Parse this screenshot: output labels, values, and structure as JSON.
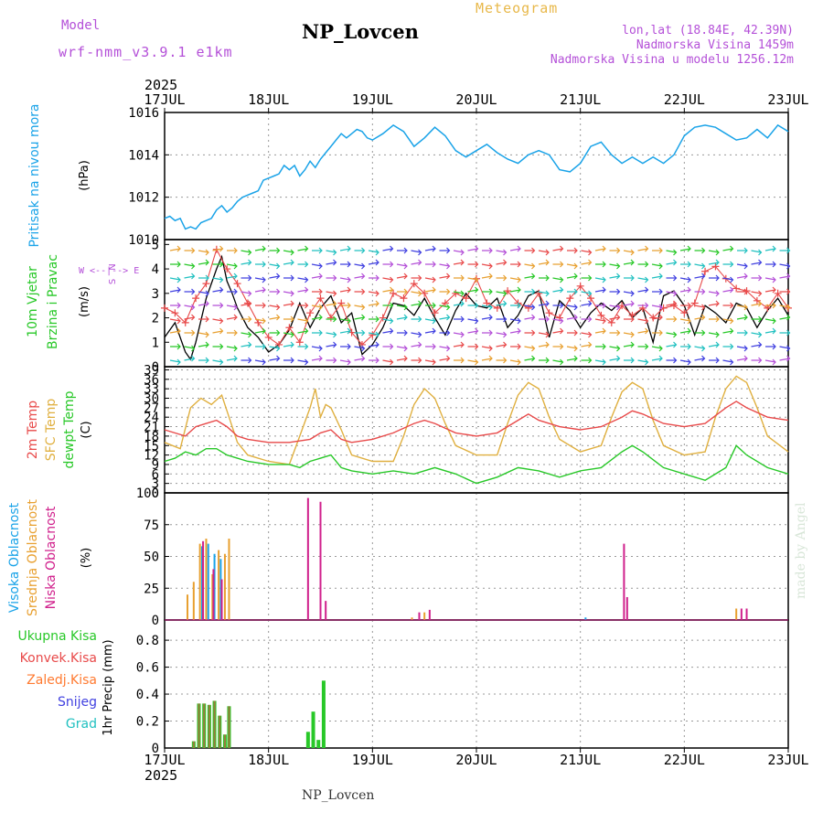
{
  "header": {
    "title": "NP_Lovcen",
    "meteogram_label": "Meteogram",
    "model_label": "Model",
    "model_name": "wrf-nmm_v3.9.1 e1km",
    "lonlat": "lon,lat (18.84E, 42.39N)",
    "elevation": "Nadmorska Visina 1459m",
    "model_elevation": "Nadmorska Visina u modelu 1256.12m"
  },
  "footer": {
    "station": "NP_Lovcen",
    "credit": "made by Angel"
  },
  "colors": {
    "pressure": "#1aa3e8",
    "wind_black": "#000000",
    "gust": "#e84a4a",
    "t2m": "#e84a4a",
    "tsfc": "#e0b040",
    "dewpt": "#28c828",
    "cloud_high": "#1aa3e8",
    "cloud_mid": "#e8a030",
    "cloud_low": "#d0208c",
    "precip_total": "#28c828",
    "precip_conv": "#e84a4a",
    "precip_frz": "#ff7a30",
    "snow": "#4040e0",
    "graupel": "#20c0c0",
    "purple_text": "#b450d8"
  },
  "chart_data": [
    {
      "type": "line",
      "panel": "pressure",
      "ylabel_main": "Pritisak na nivou mora",
      "ylabel_unit": "(hPa)",
      "year": "2025",
      "x_ticks": [
        "17JUL",
        "18JUL",
        "19JUL",
        "20JUL",
        "21JUL",
        "22JUL",
        "23JUL"
      ],
      "x_range_days": [
        0,
        6
      ],
      "ylim": [
        1010,
        1016
      ],
      "y_ticks": [
        1010,
        1012,
        1014,
        1016
      ],
      "grid": true,
      "series": [
        {
          "x": [
            0,
            0.05,
            0.1,
            0.15,
            0.2,
            0.25,
            0.3,
            0.35,
            0.4,
            0.45,
            0.5,
            0.55,
            0.6,
            0.65,
            0.7,
            0.75,
            0.8,
            0.85,
            0.9,
            0.95,
            1.0,
            1.05,
            1.1,
            1.15,
            1.2,
            1.25,
            1.3,
            1.35,
            1.4,
            1.45,
            1.5,
            1.55,
            1.6,
            1.65,
            1.7,
            1.75,
            1.8,
            1.85,
            1.9,
            1.95,
            2.0,
            2.1,
            2.2,
            2.3,
            2.4,
            2.5,
            2.6,
            2.7,
            2.8,
            2.9,
            3.0,
            3.1,
            3.2,
            3.3,
            3.4,
            3.5,
            3.6,
            3.7,
            3.8,
            3.9,
            4.0,
            4.1,
            4.2,
            4.3,
            4.4,
            4.5,
            4.6,
            4.7,
            4.8,
            4.9,
            5.0,
            5.1,
            5.2,
            5.3,
            5.4,
            5.5,
            5.6,
            5.7,
            5.8,
            5.9,
            6.0
          ],
          "values": [
            1011.0,
            1011.1,
            1010.9,
            1011.0,
            1010.5,
            1010.6,
            1010.5,
            1010.8,
            1010.9,
            1011.0,
            1011.4,
            1011.6,
            1011.3,
            1011.5,
            1011.8,
            1012.0,
            1012.1,
            1012.2,
            1012.3,
            1012.8,
            1012.9,
            1013.0,
            1013.1,
            1013.5,
            1013.3,
            1013.5,
            1013.0,
            1013.3,
            1013.7,
            1013.4,
            1013.8,
            1014.1,
            1014.4,
            1014.7,
            1015.0,
            1014.8,
            1015.0,
            1015.2,
            1015.1,
            1014.8,
            1014.7,
            1015.0,
            1015.4,
            1015.1,
            1014.4,
            1014.8,
            1015.3,
            1014.9,
            1014.2,
            1013.9,
            1014.2,
            1014.5,
            1014.1,
            1013.8,
            1013.6,
            1014.0,
            1014.2,
            1014.0,
            1013.3,
            1013.2,
            1013.6,
            1014.4,
            1014.6,
            1014.0,
            1013.6,
            1013.9,
            1013.6,
            1013.9,
            1013.6,
            1014.0,
            1014.9,
            1015.3,
            1015.4,
            1015.3,
            1015.0,
            1014.7,
            1014.8,
            1015.2,
            1014.8,
            1015.4,
            1015.1
          ]
        }
      ]
    },
    {
      "type": "line",
      "panel": "wind",
      "ylabel_main_1": "10m Vjetar",
      "ylabel_main_2": "Brzina i Pravac",
      "ylabel_unit": "(m/s)",
      "compass_1": "N",
      "compass_2": "W <--|--> E",
      "compass_3": "S",
      "ylim": [
        0,
        5.2
      ],
      "y_ticks": [
        0,
        1,
        2,
        3,
        4,
        5
      ],
      "series": [
        {
          "name": "",
          "x": [
            0,
            0.1,
            0.2,
            0.25,
            0.3,
            0.4,
            0.5,
            0.55,
            0.6,
            0.65,
            0.7,
            0.8,
            0.9,
            1.0,
            1.1,
            1.2,
            1.3,
            1.4,
            1.5,
            1.6,
            1.7,
            1.8,
            1.9,
            2.0,
            2.1,
            2.2,
            2.3,
            2.4,
            2.5,
            2.6,
            2.7,
            2.8,
            2.9,
            3.0,
            3.1,
            3.2,
            3.3,
            3.4,
            3.5,
            3.6,
            3.7,
            3.8,
            3.9,
            4.0,
            4.1,
            4.2,
            4.3,
            4.4,
            4.5,
            4.6,
            4.7,
            4.8,
            4.9,
            5.0,
            5.1,
            5.2,
            5.3,
            5.4,
            5.5,
            5.6,
            5.7,
            5.8,
            5.9,
            6.0
          ],
          "values": [
            1.2,
            1.8,
            0.6,
            0.3,
            1.0,
            2.8,
            4.0,
            4.5,
            3.5,
            3.0,
            2.4,
            1.6,
            1.2,
            0.6,
            0.9,
            1.5,
            2.6,
            1.6,
            2.4,
            2.9,
            1.8,
            2.2,
            0.5,
            0.9,
            1.6,
            2.6,
            2.5,
            2.1,
            2.8,
            2.0,
            1.3,
            2.3,
            3.0,
            2.5,
            2.4,
            2.8,
            1.6,
            2.1,
            2.9,
            3.1,
            1.2,
            2.7,
            2.3,
            1.6,
            2.2,
            2.6,
            2.3,
            2.7,
            2.0,
            2.4,
            1.0,
            2.9,
            3.1,
            2.5,
            1.3,
            2.5,
            2.2,
            1.8,
            2.6,
            2.4,
            1.6,
            2.3,
            2.8,
            2.1
          ]
        },
        {
          "name": "",
          "x": [
            0,
            0.1,
            0.2,
            0.3,
            0.4,
            0.5,
            0.6,
            0.7,
            0.8,
            0.9,
            1.0,
            1.1,
            1.2,
            1.3,
            1.4,
            1.5,
            1.6,
            1.7,
            1.8,
            1.9,
            2.0,
            2.1,
            2.2,
            2.3,
            2.4,
            2.5,
            2.6,
            2.7,
            2.8,
            2.9,
            3.0,
            3.1,
            3.2,
            3.3,
            3.4,
            3.5,
            3.6,
            3.7,
            3.8,
            3.9,
            4.0,
            4.1,
            4.2,
            4.3,
            4.4,
            4.5,
            4.6,
            4.7,
            4.8,
            4.9,
            5.0,
            5.1,
            5.2,
            5.3,
            5.4,
            5.5,
            5.6,
            5.7,
            5.8,
            5.9,
            6.0
          ],
          "values": [
            2.4,
            2.2,
            1.8,
            2.8,
            3.4,
            4.8,
            4.0,
            3.4,
            2.6,
            1.8,
            1.2,
            0.9,
            1.6,
            1.0,
            2.2,
            2.8,
            2.0,
            2.6,
            1.4,
            0.9,
            1.3,
            2.0,
            3.0,
            2.8,
            3.4,
            3.0,
            2.2,
            2.6,
            3.0,
            2.8,
            3.6,
            2.6,
            2.4,
            3.1,
            2.6,
            2.4,
            3.0,
            2.2,
            2.0,
            2.8,
            3.3,
            2.8,
            2.1,
            1.8,
            2.5,
            2.1,
            2.4,
            2.0,
            2.4,
            2.5,
            2.2,
            2.6,
            3.9,
            4.1,
            3.6,
            3.2,
            3.1,
            2.7,
            2.4,
            3.0,
            2.4
          ]
        }
      ]
    },
    {
      "type": "line",
      "panel": "temperature",
      "ylabel_main_1": "2m Temp",
      "ylabel_main_2": "SFC Temp",
      "ylabel_main_3": "dewpt Temp",
      "ylabel_unit": "(C)",
      "ylim": [
        0,
        40
      ],
      "y_ticks": [
        0,
        3,
        6,
        9,
        12,
        15,
        18,
        21,
        24,
        27,
        30,
        33,
        36,
        39
      ],
      "series": [
        {
          "name": "2m Temp",
          "x": [
            0,
            0.2,
            0.3,
            0.4,
            0.5,
            0.6,
            0.7,
            0.8,
            1.0,
            1.2,
            1.4,
            1.5,
            1.6,
            1.7,
            1.8,
            2.0,
            2.2,
            2.4,
            2.5,
            2.6,
            2.8,
            3.0,
            3.2,
            3.4,
            3.5,
            3.6,
            3.8,
            4.0,
            4.2,
            4.4,
            4.5,
            4.6,
            4.8,
            5.0,
            5.2,
            5.4,
            5.5,
            5.6,
            5.8,
            6.0
          ],
          "values": [
            20,
            18,
            21,
            22,
            23,
            21,
            18,
            17,
            16,
            16,
            17,
            19,
            20,
            17,
            16,
            17,
            19,
            22,
            23,
            22,
            19,
            18,
            19,
            23,
            25,
            23,
            21,
            20,
            21,
            24,
            26,
            25,
            22,
            21,
            22,
            27,
            29,
            27,
            24,
            23
          ]
        },
        {
          "name": "SFC Temp",
          "x": [
            0,
            0.15,
            0.25,
            0.35,
            0.45,
            0.55,
            0.6,
            0.7,
            0.8,
            1.0,
            1.2,
            1.3,
            1.4,
            1.45,
            1.5,
            1.55,
            1.6,
            1.7,
            1.8,
            2.0,
            2.2,
            2.3,
            2.4,
            2.5,
            2.6,
            2.7,
            2.8,
            3.0,
            3.2,
            3.3,
            3.4,
            3.5,
            3.6,
            3.7,
            3.8,
            4.0,
            4.2,
            4.3,
            4.4,
            4.5,
            4.6,
            4.7,
            4.8,
            5.0,
            5.2,
            5.3,
            5.4,
            5.5,
            5.6,
            5.7,
            5.8,
            6.0
          ],
          "values": [
            16,
            14,
            27,
            30,
            28,
            31,
            26,
            16,
            12,
            10,
            9,
            18,
            27,
            33,
            24,
            28,
            27,
            20,
            12,
            10,
            10,
            18,
            28,
            33,
            30,
            22,
            15,
            12,
            12,
            22,
            31,
            35,
            33,
            24,
            17,
            13,
            15,
            24,
            32,
            35,
            33,
            23,
            15,
            12,
            13,
            24,
            33,
            37,
            35,
            27,
            18,
            13
          ]
        },
        {
          "name": "dewpt Temp",
          "x": [
            0,
            0.1,
            0.2,
            0.3,
            0.4,
            0.5,
            0.6,
            0.7,
            0.8,
            1.0,
            1.2,
            1.3,
            1.4,
            1.5,
            1.6,
            1.7,
            1.8,
            2.0,
            2.2,
            2.4,
            2.6,
            2.8,
            3.0,
            3.2,
            3.4,
            3.6,
            3.8,
            4.0,
            4.2,
            4.4,
            4.5,
            4.6,
            4.8,
            5.0,
            5.2,
            5.4,
            5.5,
            5.6,
            5.8,
            6.0
          ],
          "values": [
            10,
            11,
            13,
            12,
            14,
            14,
            12,
            11,
            10,
            9,
            9,
            8,
            10,
            11,
            12,
            8,
            7,
            6,
            7,
            6,
            8,
            6,
            3,
            5,
            8,
            7,
            5,
            7,
            8,
            13,
            15,
            13,
            8,
            6,
            4,
            8,
            15,
            12,
            8,
            6
          ]
        }
      ]
    },
    {
      "type": "bar",
      "panel": "clouds",
      "ylabel_main_1": "Visoka Oblacnost",
      "ylabel_main_2": "Srednja Oblacnost",
      "ylabel_main_3": "Niska Oblacnost",
      "ylabel_unit": "(%)",
      "ylim": [
        0,
        100
      ],
      "y_ticks": [
        0,
        25,
        50,
        75,
        100
      ],
      "series": [
        {
          "name": "Visoka Oblacnost",
          "x": [
            0.36,
            0.42,
            0.48,
            0.54,
            4.05
          ],
          "values": [
            58,
            60,
            52,
            48,
            2
          ]
        },
        {
          "name": "Srednja Oblacnost",
          "x": [
            0.22,
            0.28,
            0.34,
            0.4,
            0.46,
            0.52,
            0.58,
            0.62,
            2.38,
            2.5,
            5.5
          ],
          "values": [
            20,
            30,
            60,
            64,
            36,
            55,
            52,
            64,
            2,
            6,
            9
          ]
        },
        {
          "name": "Niska Oblacnost",
          "x": [
            0.37,
            0.47,
            0.55,
            1.38,
            1.5,
            1.55,
            2.45,
            2.55,
            4.42,
            4.45,
            5.55,
            5.6
          ],
          "values": [
            62,
            40,
            32,
            96,
            93,
            15,
            6,
            8,
            60,
            18,
            9,
            9
          ]
        }
      ]
    },
    {
      "type": "bar",
      "panel": "precip",
      "ylabel_main": "1hr Precip (mm)",
      "legend": [
        "Ukupna Kisa",
        "Konvek.Kisa",
        "Zaledj.Kisa",
        "Snijeg",
        "Grad"
      ],
      "ylim": [
        0,
        0.95
      ],
      "y_ticks": [
        0,
        0.2,
        0.4,
        0.6,
        0.8
      ],
      "series": [
        {
          "name": "Ukupna Kisa",
          "x": [
            0.28,
            0.33,
            0.38,
            0.43,
            0.48,
            0.53,
            0.58,
            0.62,
            1.38,
            1.43,
            1.48,
            1.53
          ],
          "values": [
            0.05,
            0.33,
            0.33,
            0.32,
            0.35,
            0.24,
            0.1,
            0.31,
            0.12,
            0.27,
            0.06,
            0.5
          ]
        },
        {
          "name": "Konvek.Kisa",
          "x": [
            0.28,
            0.33,
            0.38,
            0.43,
            0.48,
            0.53,
            0.58,
            0.62
          ],
          "values": [
            0.05,
            0.33,
            0.33,
            0.32,
            0.35,
            0.24,
            0.1,
            0.31
          ]
        }
      ]
    }
  ]
}
